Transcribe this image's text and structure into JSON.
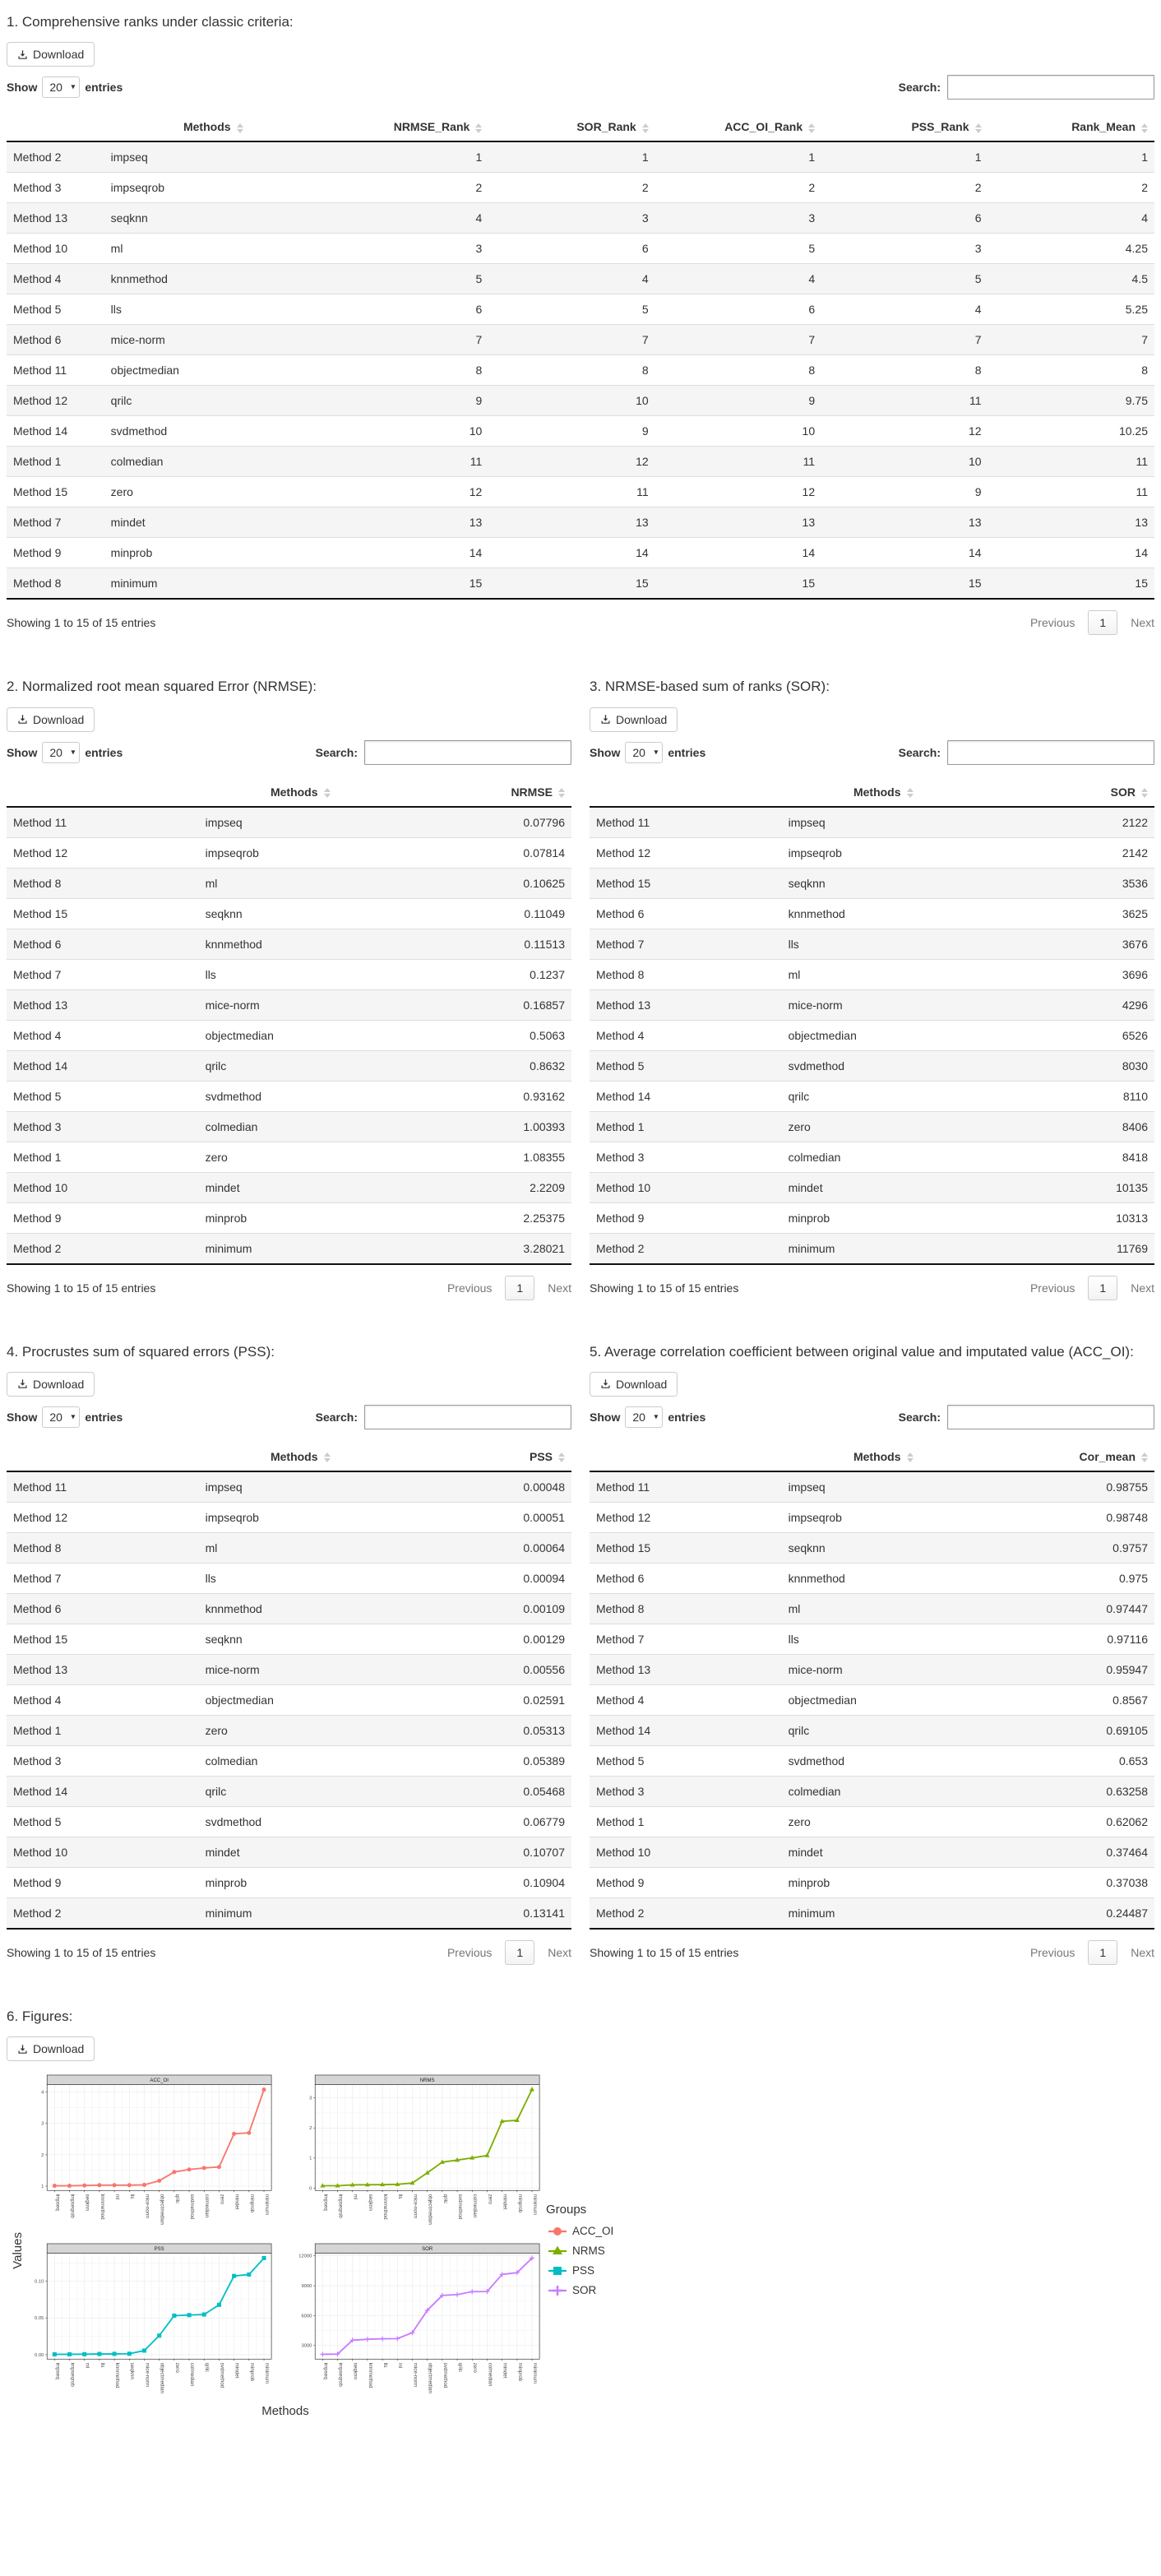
{
  "ui": {
    "download_label": "Download",
    "show_label": "Show",
    "page_size": "20",
    "entries_label": "entries",
    "search_label": "Search:",
    "showing_text": "Showing 1 to 15 of 15 entries",
    "prev_label": "Previous",
    "page_label": "1",
    "next_label": "Next"
  },
  "tables": {
    "t1": {
      "title": "1. Comprehensive ranks under classic criteria:",
      "columns": [
        "",
        "Methods",
        "NRMSE_Rank",
        "SOR_Rank",
        "ACC_OI_Rank",
        "PSS_Rank",
        "Rank_Mean"
      ],
      "rows": [
        [
          "Method 2",
          "impseq",
          "1",
          "1",
          "1",
          "1",
          "1"
        ],
        [
          "Method 3",
          "impseqrob",
          "2",
          "2",
          "2",
          "2",
          "2"
        ],
        [
          "Method 13",
          "seqknn",
          "4",
          "3",
          "3",
          "6",
          "4"
        ],
        [
          "Method 10",
          "ml",
          "3",
          "6",
          "5",
          "3",
          "4.25"
        ],
        [
          "Method 4",
          "knnmethod",
          "5",
          "4",
          "4",
          "5",
          "4.5"
        ],
        [
          "Method 5",
          "lls",
          "6",
          "5",
          "6",
          "4",
          "5.25"
        ],
        [
          "Method 6",
          "mice-norm",
          "7",
          "7",
          "7",
          "7",
          "7"
        ],
        [
          "Method 11",
          "objectmedian",
          "8",
          "8",
          "8",
          "8",
          "8"
        ],
        [
          "Method 12",
          "qrilc",
          "9",
          "10",
          "9",
          "11",
          "9.75"
        ],
        [
          "Method 14",
          "svdmethod",
          "10",
          "9",
          "10",
          "12",
          "10.25"
        ],
        [
          "Method 1",
          "colmedian",
          "11",
          "12",
          "11",
          "10",
          "11"
        ],
        [
          "Method 15",
          "zero",
          "12",
          "11",
          "12",
          "9",
          "11"
        ],
        [
          "Method 7",
          "mindet",
          "13",
          "13",
          "13",
          "13",
          "13"
        ],
        [
          "Method 9",
          "minprob",
          "14",
          "14",
          "14",
          "14",
          "14"
        ],
        [
          "Method 8",
          "minimum",
          "15",
          "15",
          "15",
          "15",
          "15"
        ]
      ]
    },
    "t2": {
      "title": "2. Normalized root mean squared Error (NRMSE):",
      "columns": [
        "",
        "Methods",
        "NRMSE"
      ],
      "rows": [
        [
          "Method 11",
          "impseq",
          "0.07796"
        ],
        [
          "Method 12",
          "impseqrob",
          "0.07814"
        ],
        [
          "Method 8",
          "ml",
          "0.10625"
        ],
        [
          "Method 15",
          "seqknn",
          "0.11049"
        ],
        [
          "Method 6",
          "knnmethod",
          "0.11513"
        ],
        [
          "Method 7",
          "lls",
          "0.1237"
        ],
        [
          "Method 13",
          "mice-norm",
          "0.16857"
        ],
        [
          "Method 4",
          "objectmedian",
          "0.5063"
        ],
        [
          "Method 14",
          "qrilc",
          "0.8632"
        ],
        [
          "Method 5",
          "svdmethod",
          "0.93162"
        ],
        [
          "Method 3",
          "colmedian",
          "1.00393"
        ],
        [
          "Method 1",
          "zero",
          "1.08355"
        ],
        [
          "Method 10",
          "mindet",
          "2.2209"
        ],
        [
          "Method 9",
          "minprob",
          "2.25375"
        ],
        [
          "Method 2",
          "minimum",
          "3.28021"
        ]
      ]
    },
    "t3": {
      "title": "3. NRMSE-based sum of ranks (SOR):",
      "columns": [
        "",
        "Methods",
        "SOR"
      ],
      "rows": [
        [
          "Method 11",
          "impseq",
          "2122"
        ],
        [
          "Method 12",
          "impseqrob",
          "2142"
        ],
        [
          "Method 15",
          "seqknn",
          "3536"
        ],
        [
          "Method 6",
          "knnmethod",
          "3625"
        ],
        [
          "Method 7",
          "lls",
          "3676"
        ],
        [
          "Method 8",
          "ml",
          "3696"
        ],
        [
          "Method 13",
          "mice-norm",
          "4296"
        ],
        [
          "Method 4",
          "objectmedian",
          "6526"
        ],
        [
          "Method 5",
          "svdmethod",
          "8030"
        ],
        [
          "Method 14",
          "qrilc",
          "8110"
        ],
        [
          "Method 1",
          "zero",
          "8406"
        ],
        [
          "Method 3",
          "colmedian",
          "8418"
        ],
        [
          "Method 10",
          "mindet",
          "10135"
        ],
        [
          "Method 9",
          "minprob",
          "10313"
        ],
        [
          "Method 2",
          "minimum",
          "11769"
        ]
      ]
    },
    "t4": {
      "title": "4. Procrustes sum of squared errors (PSS):",
      "columns": [
        "",
        "Methods",
        "PSS"
      ],
      "rows": [
        [
          "Method 11",
          "impseq",
          "0.00048"
        ],
        [
          "Method 12",
          "impseqrob",
          "0.00051"
        ],
        [
          "Method 8",
          "ml",
          "0.00064"
        ],
        [
          "Method 7",
          "lls",
          "0.00094"
        ],
        [
          "Method 6",
          "knnmethod",
          "0.00109"
        ],
        [
          "Method 15",
          "seqknn",
          "0.00129"
        ],
        [
          "Method 13",
          "mice-norm",
          "0.00556"
        ],
        [
          "Method 4",
          "objectmedian",
          "0.02591"
        ],
        [
          "Method 1",
          "zero",
          "0.05313"
        ],
        [
          "Method 3",
          "colmedian",
          "0.05389"
        ],
        [
          "Method 14",
          "qrilc",
          "0.05468"
        ],
        [
          "Method 5",
          "svdmethod",
          "0.06779"
        ],
        [
          "Method 10",
          "mindet",
          "0.10707"
        ],
        [
          "Method 9",
          "minprob",
          "0.10904"
        ],
        [
          "Method 2",
          "minimum",
          "0.13141"
        ]
      ]
    },
    "t5": {
      "title": "5. Average correlation coefficient between original value and imputated value (ACC_OI):",
      "columns": [
        "",
        "Methods",
        "Cor_mean"
      ],
      "rows": [
        [
          "Method 11",
          "impseq",
          "0.98755"
        ],
        [
          "Method 12",
          "impseqrob",
          "0.98748"
        ],
        [
          "Method 15",
          "seqknn",
          "0.9757"
        ],
        [
          "Method 6",
          "knnmethod",
          "0.975"
        ],
        [
          "Method 8",
          "ml",
          "0.97447"
        ],
        [
          "Method 7",
          "lls",
          "0.97116"
        ],
        [
          "Method 13",
          "mice-norm",
          "0.95947"
        ],
        [
          "Method 4",
          "objectmedian",
          "0.8567"
        ],
        [
          "Method 14",
          "qrilc",
          "0.69105"
        ],
        [
          "Method 5",
          "svdmethod",
          "0.653"
        ],
        [
          "Method 3",
          "colmedian",
          "0.63258"
        ],
        [
          "Method 1",
          "zero",
          "0.62062"
        ],
        [
          "Method 10",
          "mindet",
          "0.37464"
        ],
        [
          "Method 9",
          "minprob",
          "0.37038"
        ],
        [
          "Method 2",
          "minimum",
          "0.24487"
        ]
      ]
    }
  },
  "figures": {
    "title": "6. Figures:",
    "ylabel": "Values",
    "xlabel": "Methods",
    "legend": {
      "title": "Groups",
      "items": [
        {
          "label": "ACC_OI",
          "color": "#F8766D",
          "shape": "circle"
        },
        {
          "label": "NRMS",
          "color": "#7CAE00",
          "shape": "triangle"
        },
        {
          "label": "PSS",
          "color": "#00BFC4",
          "shape": "square"
        },
        {
          "label": "SOR",
          "color": "#C77CFF",
          "shape": "plus"
        }
      ]
    }
  },
  "chart_data": [
    {
      "type": "line",
      "panel": "ACC_OI",
      "color": "#F8766D",
      "shape": "circle",
      "categories": [
        "impseq",
        "impseqrob",
        "seqknn",
        "knnmethod",
        "ml",
        "lls",
        "mice-norm",
        "objectmedian",
        "qrilc",
        "svdmethod",
        "colmedian",
        "zero",
        "mindet",
        "minprob",
        "minimum"
      ],
      "values": [
        1.01,
        1.01,
        1.02,
        1.03,
        1.03,
        1.03,
        1.04,
        1.17,
        1.45,
        1.53,
        1.58,
        1.61,
        2.67,
        2.7,
        4.08
      ],
      "yticks": [
        1,
        2,
        3,
        4
      ],
      "ytick_labels": [
        "1",
        "2",
        "3",
        "4"
      ],
      "ylim": [
        0.86,
        4.24
      ],
      "grid": true,
      "xlabel": "Methods",
      "ylabel": "Values"
    },
    {
      "type": "line",
      "panel": "NRMS",
      "color": "#7CAE00",
      "shape": "triangle",
      "categories": [
        "impseq",
        "impseqrob",
        "ml",
        "seqknn",
        "knnmethod",
        "lls",
        "mice-norm",
        "objectmedian",
        "qrilc",
        "svdmethod",
        "colmedian",
        "zero",
        "mindet",
        "minprob",
        "minimum"
      ],
      "values": [
        0.07796,
        0.07814,
        0.10625,
        0.11049,
        0.11513,
        0.1237,
        0.16857,
        0.5063,
        0.8632,
        0.93162,
        1.00393,
        1.08355,
        2.2209,
        2.25375,
        3.28021
      ],
      "yticks": [
        0,
        1,
        2,
        3
      ],
      "ytick_labels": [
        "0",
        "1",
        "2",
        "3"
      ],
      "ylim": [
        -0.08,
        3.44
      ],
      "grid": true,
      "xlabel": "Methods",
      "ylabel": "Values"
    },
    {
      "type": "line",
      "panel": "PSS",
      "color": "#00BFC4",
      "shape": "square",
      "categories": [
        "impseq",
        "impseqrob",
        "ml",
        "lls",
        "knnmethod",
        "seqknn",
        "mice-norm",
        "objectmedian",
        "zero",
        "colmedian",
        "qrilc",
        "svdmethod",
        "mindet",
        "minprob",
        "minimum"
      ],
      "values": [
        0.00048,
        0.00051,
        0.00064,
        0.00094,
        0.00109,
        0.00129,
        0.00556,
        0.02591,
        0.05313,
        0.05389,
        0.05468,
        0.06779,
        0.10707,
        0.10904,
        0.13141
      ],
      "yticks": [
        0.0,
        0.05,
        0.1
      ],
      "ytick_labels": [
        "0.00",
        "0.05",
        "0.10"
      ],
      "ylim": [
        -0.006,
        0.138
      ],
      "grid": true,
      "xlabel": "Methods",
      "ylabel": "Values"
    },
    {
      "type": "line",
      "panel": "SOR",
      "color": "#C77CFF",
      "shape": "plus",
      "categories": [
        "impseq",
        "impseqrob",
        "seqknn",
        "knnmethod",
        "lls",
        "ml",
        "mice-norm",
        "objectmedian",
        "svdmethod",
        "qrilc",
        "zero",
        "colmedian",
        "mindet",
        "minprob",
        "minimum"
      ],
      "values": [
        2122,
        2142,
        3536,
        3625,
        3676,
        3696,
        4296,
        6526,
        8030,
        8110,
        8406,
        8418,
        10135,
        10313,
        11769
      ],
      "yticks": [
        3000,
        6000,
        9000,
        12000
      ],
      "ytick_labels": [
        "3000",
        "6000",
        "9000",
        "12000"
      ],
      "ylim": [
        1640,
        12260
      ],
      "grid": true,
      "xlabel": "Methods",
      "ylabel": "Values"
    }
  ]
}
